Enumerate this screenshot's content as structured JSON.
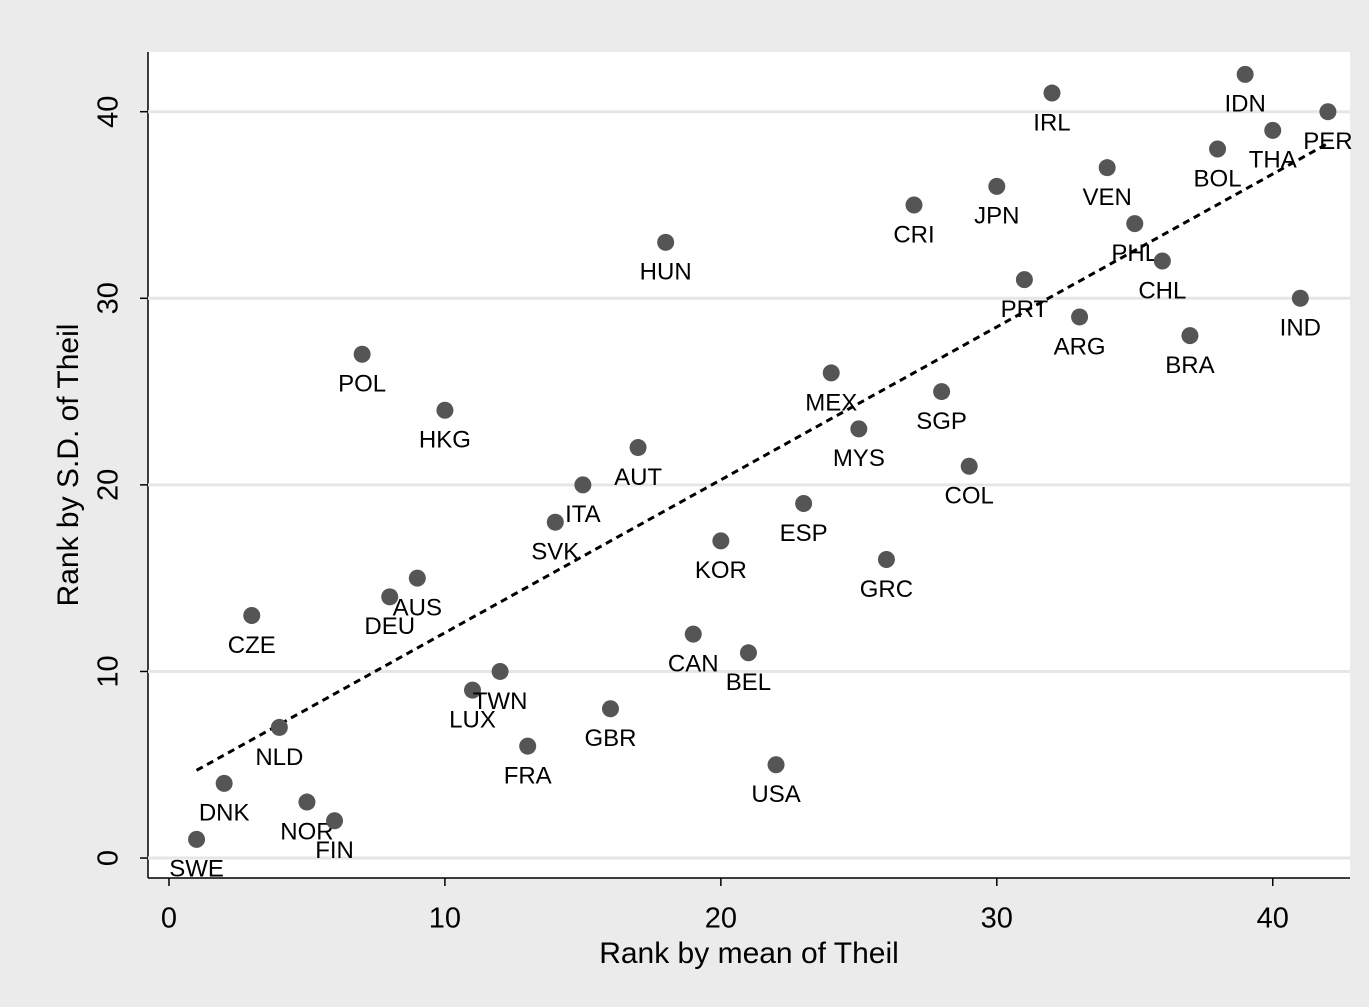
{
  "chart_data": {
    "type": "scatter",
    "xlabel": "Rank by mean of Theil",
    "ylabel": "Rank by S.D. of Theil",
    "labels": [
      "SWE",
      "DNK",
      "NOR",
      "FIN",
      "NLD",
      "CZE",
      "DEU",
      "AUS",
      "LUX",
      "TWN",
      "FRA",
      "GBR",
      "POL",
      "HKG",
      "SVK",
      "ITA",
      "AUT",
      "HUN",
      "CAN",
      "KOR",
      "BEL",
      "USA",
      "ESP",
      "MEX",
      "MYS",
      "GRC",
      "CRI",
      "SGP",
      "COL",
      "JPN",
      "PRT",
      "IRL",
      "ARG",
      "VEN",
      "PHL",
      "CHL",
      "BRA",
      "BOL",
      "IDN",
      "THA",
      "IND",
      "PER"
    ],
    "x": [
      1,
      2,
      5,
      6,
      4,
      3,
      8,
      9,
      11,
      12,
      13,
      16,
      7,
      10,
      14,
      15,
      17,
      18,
      19,
      20,
      21,
      22,
      23,
      24,
      25,
      26,
      27,
      28,
      29,
      30,
      31,
      32,
      33,
      34,
      35,
      36,
      37,
      38,
      39,
      40,
      41,
      42
    ],
    "y": [
      1,
      4,
      3,
      2,
      7,
      13,
      14,
      15,
      9,
      10,
      6,
      8,
      27,
      24,
      18,
      20,
      22,
      33,
      12,
      17,
      11,
      5,
      19,
      26,
      23,
      16,
      35,
      25,
      21,
      36,
      31,
      41,
      29,
      37,
      34,
      32,
      28,
      38,
      42,
      39,
      30,
      40
    ],
    "color": "#555555",
    "fit": {
      "x": [
        1,
        42
      ],
      "y": [
        4.7,
        38.3
      ],
      "color": "#000000",
      "dashed": true
    },
    "xlim": [
      -0.76,
      42.8
    ],
    "ylim": [
      -1.07,
      43.2
    ],
    "xticks": [
      0,
      10,
      20,
      30,
      40
    ],
    "yticks": [
      0,
      10,
      20,
      30,
      40
    ],
    "grid": true
  }
}
